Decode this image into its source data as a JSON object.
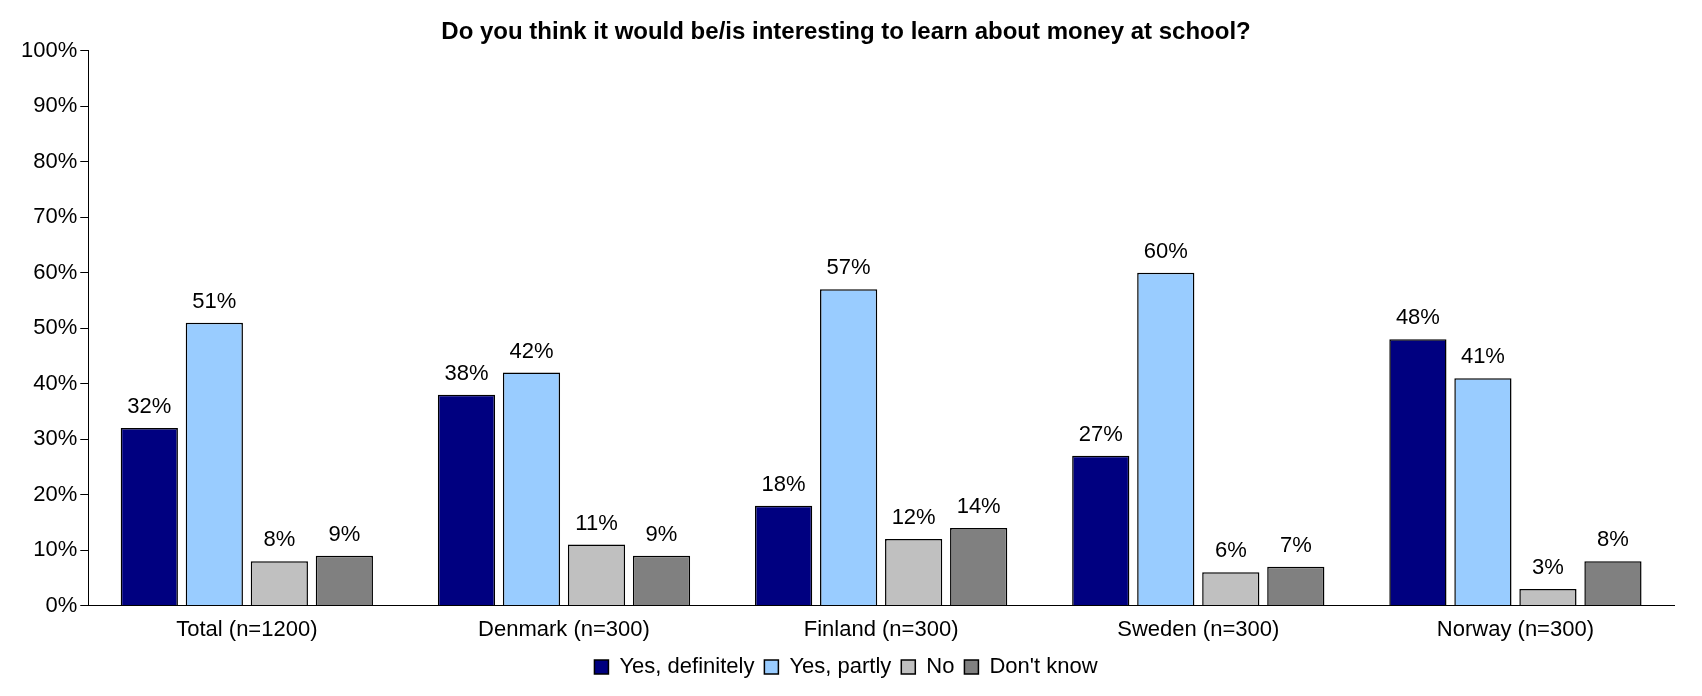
{
  "chart_data": {
    "type": "bar",
    "title": "Do you think it would be/is interesting to learn about money at school?",
    "categories": [
      "Total (n=1200)",
      "Denmark (n=300)",
      "Finland (n=300)",
      "Sweden (n=300)",
      "Norway (n=300)"
    ],
    "series": [
      {
        "name": "Yes, definitely",
        "color": "#000080",
        "values": [
          32,
          38,
          18,
          27,
          48
        ],
        "value_labels": [
          "32%",
          "38%",
          "18%",
          "27%",
          "48%"
        ]
      },
      {
        "name": "Yes, partly",
        "color": "#99ccff",
        "values": [
          51,
          42,
          57,
          60,
          41
        ],
        "value_labels": [
          "51%",
          "42%",
          "57%",
          "60%",
          "41%"
        ]
      },
      {
        "name": "No",
        "color": "#c0c0c0",
        "values": [
          8,
          11,
          12,
          6,
          3
        ],
        "value_labels": [
          "8%",
          "11%",
          "12%",
          "6%",
          "3%"
        ]
      },
      {
        "name": "Don't know",
        "color": "#808080",
        "values": [
          9,
          9,
          14,
          7,
          8
        ],
        "value_labels": [
          "9%",
          "9%",
          "14%",
          "7%",
          "8%"
        ]
      }
    ],
    "ylim": [
      0,
      100
    ],
    "yticks": [
      {
        "value": 0,
        "label": "0%"
      },
      {
        "value": 10,
        "label": "10%"
      },
      {
        "value": 20,
        "label": "20%"
      },
      {
        "value": 30,
        "label": "30%"
      },
      {
        "value": 40,
        "label": "40%"
      },
      {
        "value": 50,
        "label": "50%"
      },
      {
        "value": 60,
        "label": "60%"
      },
      {
        "value": 70,
        "label": "70%"
      },
      {
        "value": 80,
        "label": "80%"
      },
      {
        "value": 90,
        "label": "90%"
      },
      {
        "value": 100,
        "label": "100%"
      }
    ],
    "grid": false,
    "legend": "bottom"
  }
}
